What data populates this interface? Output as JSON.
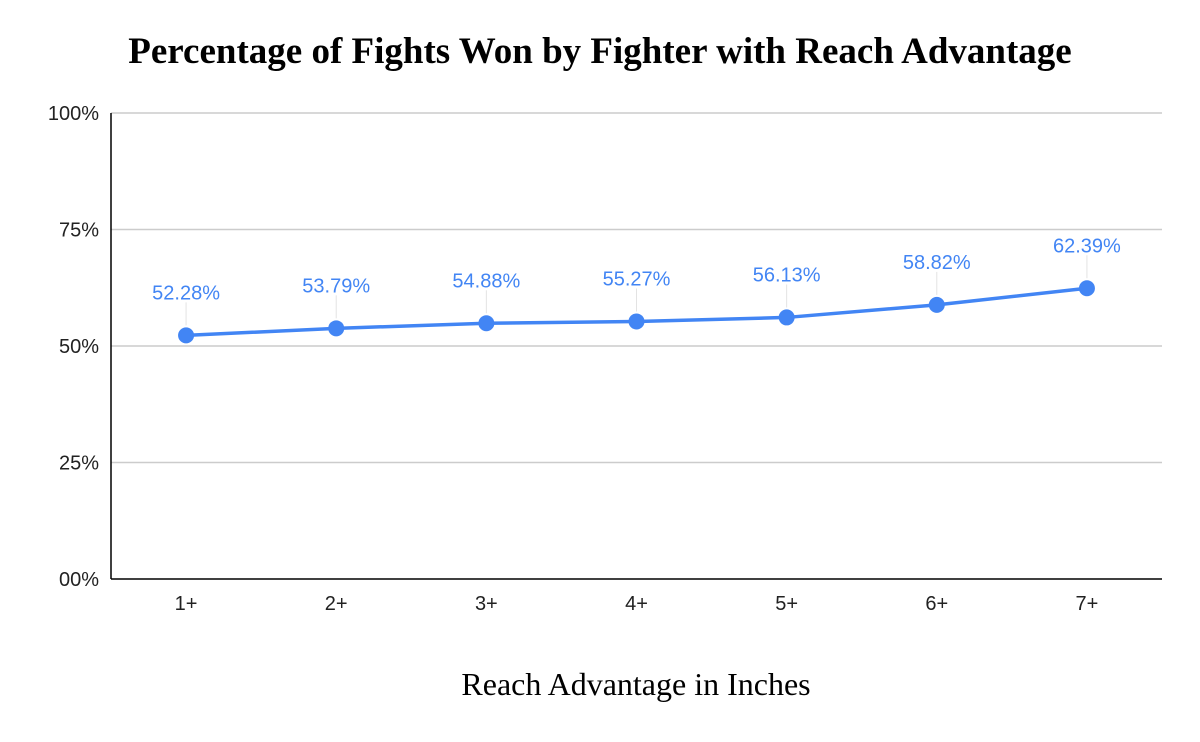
{
  "chart_data": {
    "type": "line",
    "title": "Percentage of Fights Won by Fighter with Reach Advantage",
    "xlabel": "Reach Advantage in Inches",
    "ylabel": "",
    "categories": [
      "1+",
      "2+",
      "3+",
      "4+",
      "5+",
      "6+",
      "7+"
    ],
    "series": [
      {
        "values": [
          52.28,
          53.79,
          54.88,
          55.27,
          56.13,
          58.82,
          62.39
        ],
        "data_labels": [
          "52.28%",
          "53.79%",
          "54.88%",
          "55.27%",
          "56.13%",
          "58.82%",
          "62.39%"
        ]
      }
    ],
    "ylim": [
      0,
      100
    ],
    "yticks": [
      0,
      25,
      50,
      75,
      100
    ],
    "ytick_labels": [
      "00%",
      "25%",
      "50%",
      "75%",
      "100%"
    ],
    "grid": true,
    "legend": "none",
    "colors": {
      "series": "#4285f4",
      "grid": "#cccccc",
      "axis": "#000000"
    }
  }
}
